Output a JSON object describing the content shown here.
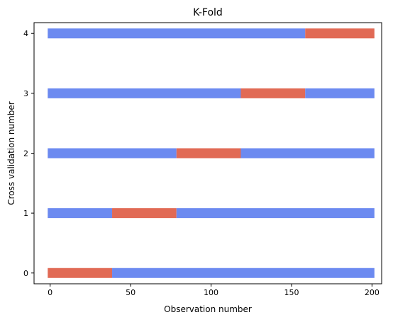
{
  "chart_data": {
    "type": "bar",
    "orientation": "horizontal",
    "title": "K-Fold",
    "xlabel": "Observation number",
    "ylabel": "Cross validation number",
    "xlim": [
      -10,
      206
    ],
    "ylim": [
      -0.18,
      4.18
    ],
    "xticks": [
      0,
      50,
      100,
      150,
      200
    ],
    "yticks": [
      0,
      1,
      2,
      3,
      4
    ],
    "grid": false,
    "legend": false,
    "colors": {
      "train": "#6c8af0",
      "test": "#e16a55"
    },
    "series": [
      {
        "fold": 0,
        "segments": [
          {
            "start": -1.5,
            "end": 38.5,
            "set": "test"
          },
          {
            "start": 38.5,
            "end": 201.5,
            "set": "train"
          }
        ]
      },
      {
        "fold": 1,
        "segments": [
          {
            "start": -1.5,
            "end": 38.5,
            "set": "train"
          },
          {
            "start": 38.5,
            "end": 78.5,
            "set": "test"
          },
          {
            "start": 78.5,
            "end": 201.5,
            "set": "train"
          }
        ]
      },
      {
        "fold": 2,
        "segments": [
          {
            "start": -1.5,
            "end": 78.5,
            "set": "train"
          },
          {
            "start": 78.5,
            "end": 118.5,
            "set": "test"
          },
          {
            "start": 118.5,
            "end": 201.5,
            "set": "train"
          }
        ]
      },
      {
        "fold": 3,
        "segments": [
          {
            "start": -1.5,
            "end": 118.5,
            "set": "train"
          },
          {
            "start": 118.5,
            "end": 158.5,
            "set": "test"
          },
          {
            "start": 158.5,
            "end": 201.5,
            "set": "train"
          }
        ]
      },
      {
        "fold": 4,
        "segments": [
          {
            "start": -1.5,
            "end": 158.5,
            "set": "train"
          },
          {
            "start": 158.5,
            "end": 201.5,
            "set": "test"
          }
        ]
      }
    ]
  }
}
